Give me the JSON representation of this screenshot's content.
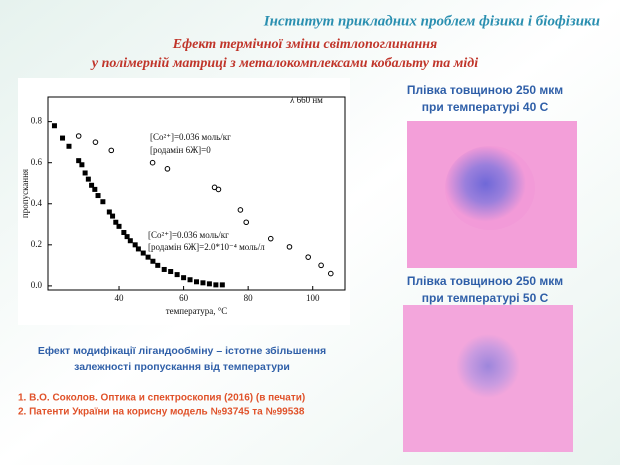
{
  "header": {
    "institute": "Інститут прикладних проблем фізики і біофізики",
    "title_line1": "Ефект термічної зміни світлопоглинання",
    "title_line2": "у полімерній матриці з металокомплексами кобальту та міді"
  },
  "chart_data": {
    "type": "scatter",
    "x_label": "температура, °C",
    "y_label": "пропускання",
    "annotations": [
      "λ  660 нм",
      "[Co²⁺]=0.036 моль/кг",
      "[родамін 6Ж]=0",
      "[Co²⁺]=0.036 моль/кг",
      "[родамін 6Ж]=2.0*10⁻⁴ моль/л"
    ],
    "xlim": [
      18,
      110
    ],
    "ylim": [
      -0.02,
      0.92
    ],
    "xticks": [
      40,
      60,
      80,
      100
    ],
    "yticks": [
      {
        "value": 0,
        "label": "0.0"
      },
      0.2,
      0.4,
      0.6,
      0.8
    ],
    "series": [
      {
        "marker": "square",
        "color": "#000000",
        "x": [
          20,
          22.5,
          24.5,
          27.5,
          28.5,
          29.5,
          30.5,
          31.5,
          32.5,
          33.5,
          35,
          37,
          38,
          39,
          40,
          41.5,
          42.5,
          43.5,
          45,
          46,
          47.5,
          49,
          50.5,
          52,
          54,
          56,
          58,
          60,
          62,
          64,
          66,
          68,
          70,
          72
        ],
        "values": [
          0.78,
          0.72,
          0.68,
          0.61,
          0.59,
          0.55,
          0.52,
          0.49,
          0.47,
          0.44,
          0.41,
          0.36,
          0.34,
          0.31,
          0.29,
          0.26,
          0.24,
          0.22,
          0.2,
          0.18,
          0.16,
          0.14,
          0.12,
          0.1,
          0.08,
          0.07,
          0.055,
          0.04,
          0.03,
          0.02,
          0.015,
          0.01,
          0.005,
          0.005
        ]
      },
      {
        "marker": "circle",
        "color": "#000000",
        "x": [
          27.5,
          32.7,
          37.6,
          50.4,
          55,
          69.6,
          70.8,
          77.6,
          79.4,
          87,
          92.8,
          98.6,
          102.6,
          105.6
        ],
        "values": [
          0.73,
          0.7,
          0.66,
          0.6,
          0.57,
          0.48,
          0.47,
          0.37,
          0.31,
          0.23,
          0.19,
          0.14,
          0.1,
          0.06
        ]
      }
    ]
  },
  "photos": {
    "caption1_line1": "Плівка товщиною 250 мкм",
    "caption1_line2": "при температурі 40 С",
    "caption2_line1": "Плівка товщиною 250 мкм",
    "caption2_line2": "при температурі 50 С"
  },
  "chart_caption": {
    "line1": "Ефект модифікації лігандообміну –  істотне збільшення",
    "line2": "залежності пропускання від температури"
  },
  "references": {
    "ref1": "1. В.О. Соколов. Оптика и спектроскопия (2016) (в печати)",
    "ref2": "2. Патенти України на корисну модель №93745 та №99538"
  }
}
